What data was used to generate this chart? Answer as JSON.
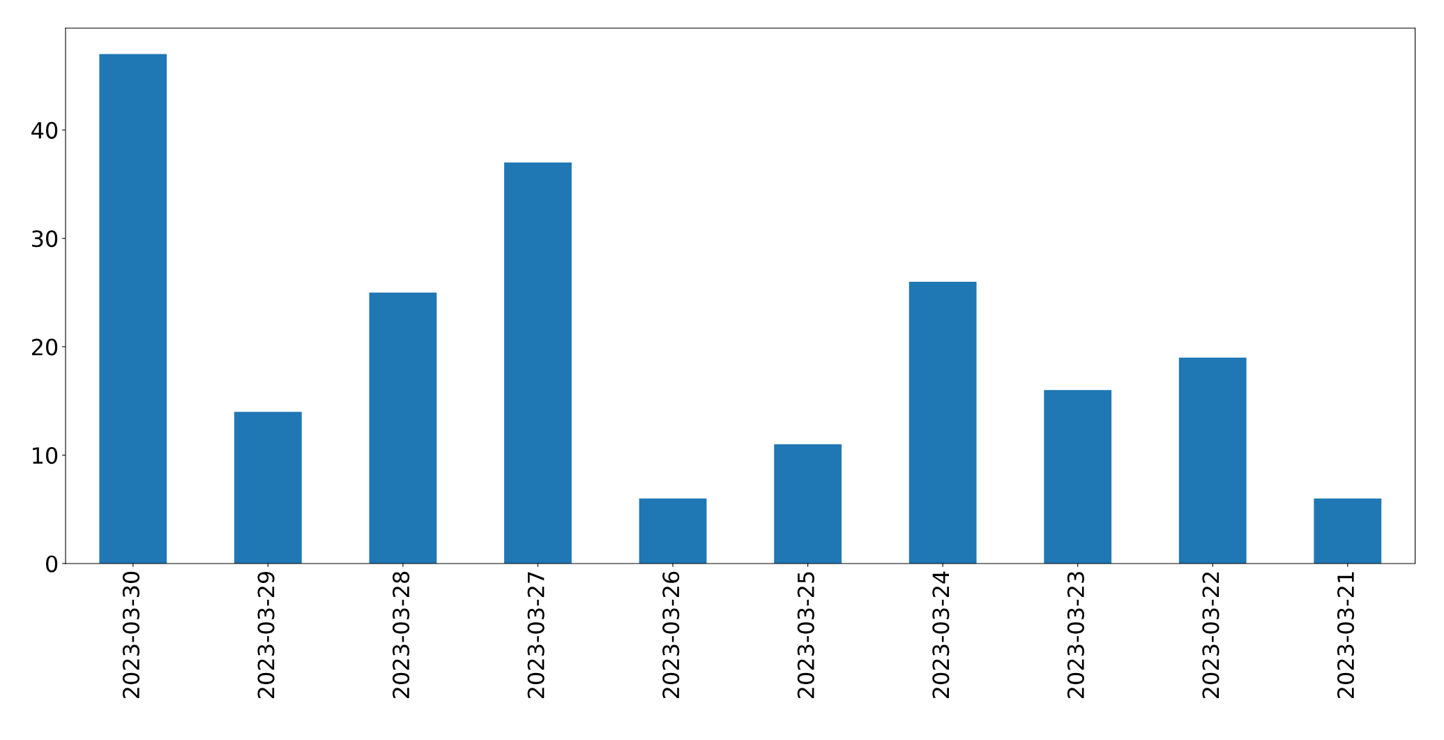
{
  "chart_data": {
    "type": "bar",
    "categories": [
      "2023-03-30",
      "2023-03-29",
      "2023-03-28",
      "2023-03-27",
      "2023-03-26",
      "2023-03-25",
      "2023-03-24",
      "2023-03-23",
      "2023-03-22",
      "2023-03-21"
    ],
    "values": [
      47,
      14,
      25,
      37,
      6,
      11,
      26,
      16,
      19,
      6
    ],
    "color": "#1f77b4",
    "ylim": [
      0,
      49.4
    ],
    "yticks": [
      0,
      10,
      20,
      30,
      40
    ],
    "grid": false,
    "legend": false
  }
}
